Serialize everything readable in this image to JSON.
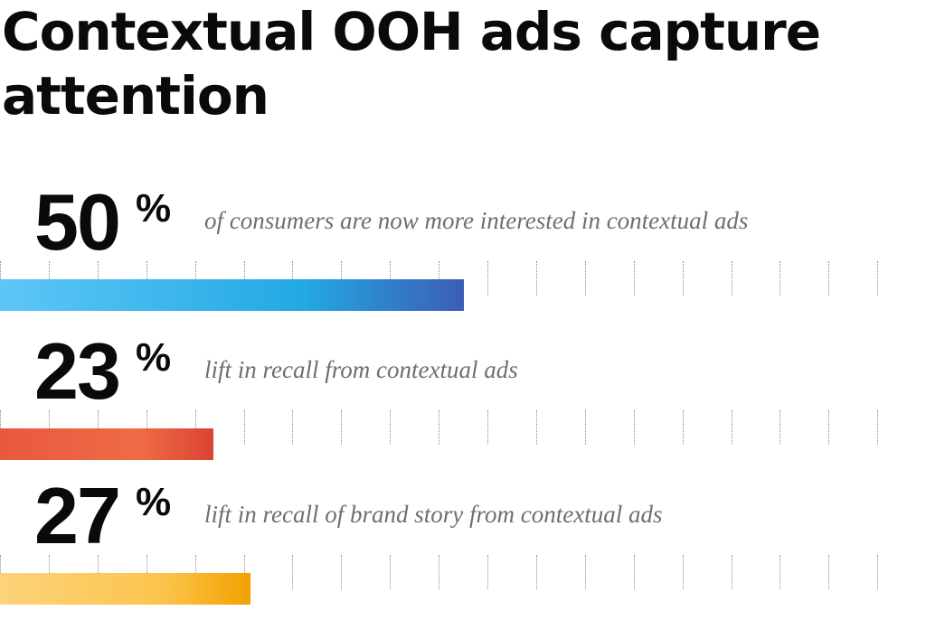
{
  "title": "Contextual OOH ads capture attention",
  "chart_data": {
    "type": "bar",
    "orientation": "horizontal",
    "scale_max": 100,
    "tick_count": 19,
    "grid": true,
    "items": [
      {
        "value": 50,
        "number": "50",
        "unit": "%",
        "label": "of consumers are now more interested in contextual ads",
        "color_start": "#5ec6f7",
        "color_mid": "#23a9e3",
        "color_end": "#3c5db3"
      },
      {
        "value": 23,
        "number": "23",
        "unit": "%",
        "label": "lift in recall from contextual ads",
        "color_start": "#e9583f",
        "color_mid": "#ef6b46",
        "color_end": "#d94433"
      },
      {
        "value": 27,
        "number": "27",
        "unit": "%",
        "label": "lift in recall of brand story from contextual ads",
        "color_start": "#fcd37a",
        "color_mid": "#fcc44d",
        "color_end": "#f2a100"
      }
    ]
  }
}
